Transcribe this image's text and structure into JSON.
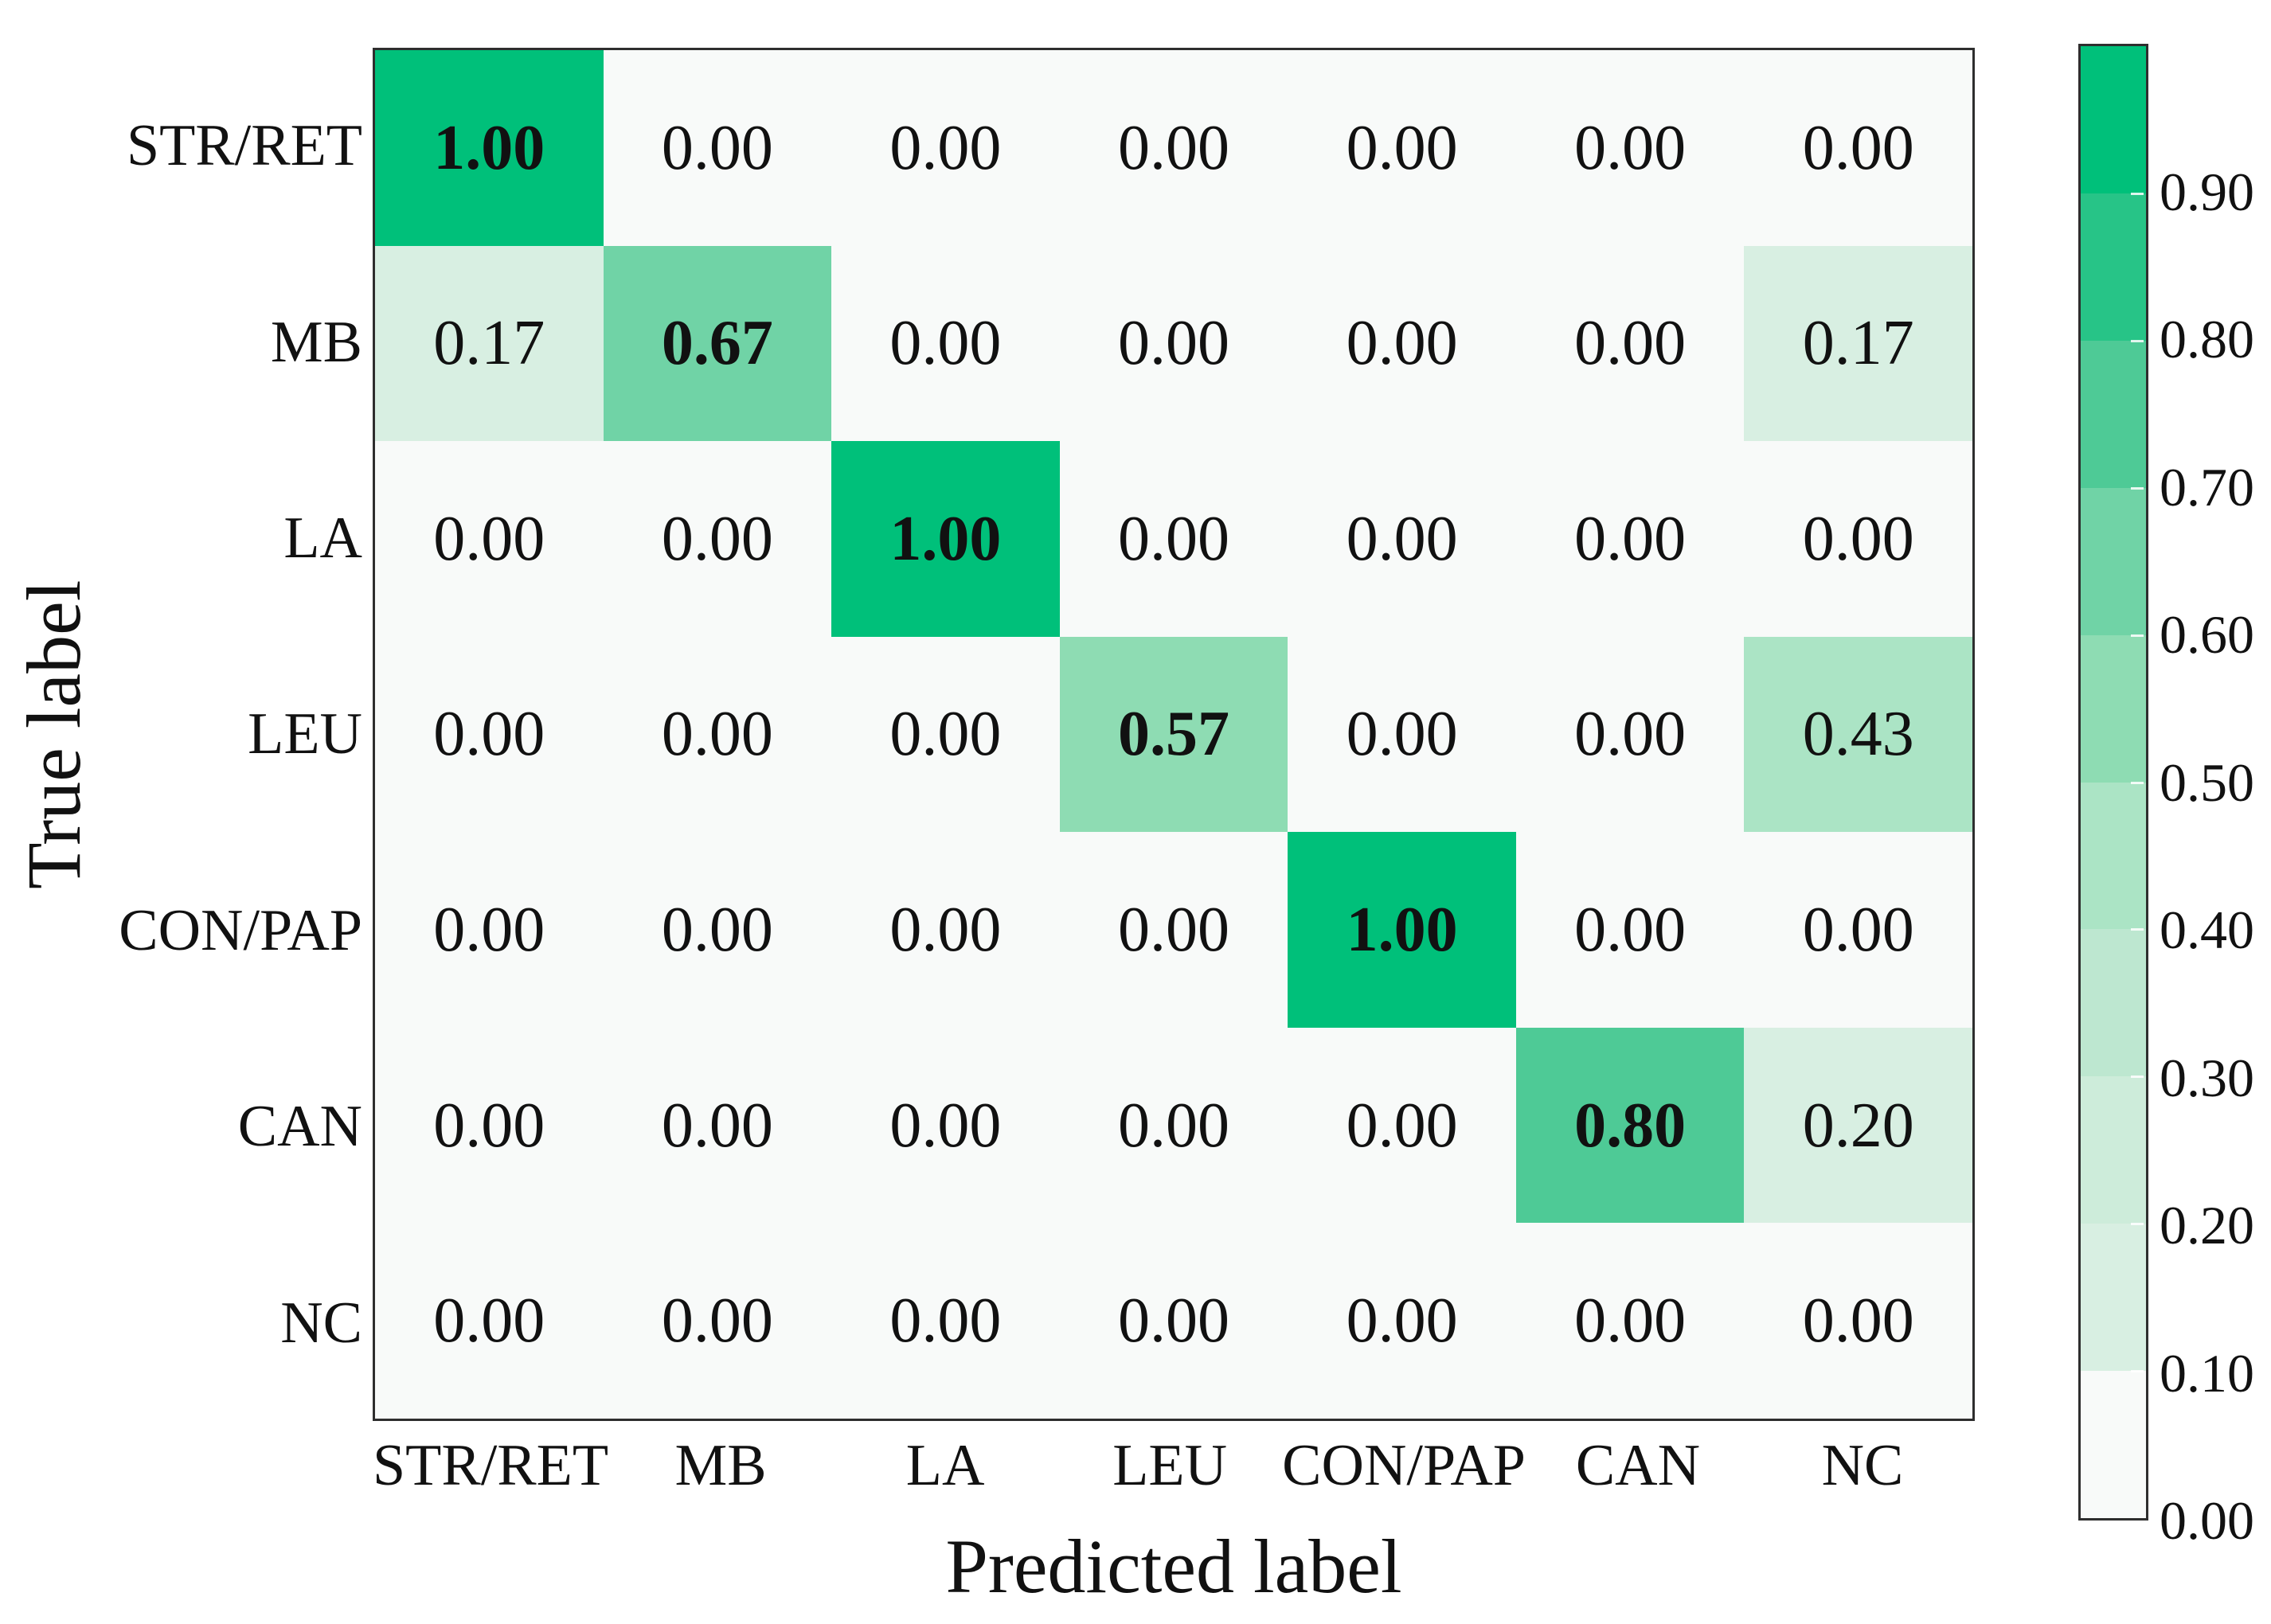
{
  "chart_data": {
    "type": "heatmap",
    "title": "",
    "xlabel": "Predicted label",
    "ylabel": "True label",
    "categories": [
      "STR/RET",
      "MB",
      "LA",
      "LEU",
      "CON/PAP",
      "CAN",
      "NC"
    ],
    "series": [
      {
        "name": "STR/RET",
        "values": [
          1.0,
          0.0,
          0.0,
          0.0,
          0.0,
          0.0,
          0.0
        ]
      },
      {
        "name": "MB",
        "values": [
          0.17,
          0.67,
          0.0,
          0.0,
          0.0,
          0.0,
          0.17
        ]
      },
      {
        "name": "LA",
        "values": [
          0.0,
          0.0,
          1.0,
          0.0,
          0.0,
          0.0,
          0.0
        ]
      },
      {
        "name": "LEU",
        "values": [
          0.0,
          0.0,
          0.0,
          0.57,
          0.0,
          0.0,
          0.43
        ]
      },
      {
        "name": "CON/PAP",
        "values": [
          0.0,
          0.0,
          0.0,
          0.0,
          1.0,
          0.0,
          0.0
        ]
      },
      {
        "name": "CAN",
        "values": [
          0.0,
          0.0,
          0.0,
          0.0,
          0.0,
          0.8,
          0.2
        ]
      },
      {
        "name": "NC",
        "values": [
          0.0,
          0.0,
          0.0,
          0.0,
          0.0,
          0.0,
          0.0
        ]
      }
    ],
    "value_range": [
      0,
      1
    ],
    "grid": false,
    "colorbar": {
      "position": "right",
      "tick_labels": [
        "0.00",
        "0.10",
        "0.20",
        "0.30",
        "0.40",
        "0.50",
        "0.60",
        "0.70",
        "0.80",
        "0.90"
      ],
      "band_colors": [
        "#f8faf9",
        "#d8efe2",
        "#cdecda",
        "#bde7d0",
        "#abe4c5",
        "#8edcb3",
        "#70d3a6",
        "#4eca96",
        "#27c487",
        "#00c07a"
      ]
    }
  },
  "colors": {
    "figure_background": "#ffffff",
    "axis_border": "#2e2e2e",
    "text": "#111111",
    "diagonal_max": "#00c07a"
  }
}
